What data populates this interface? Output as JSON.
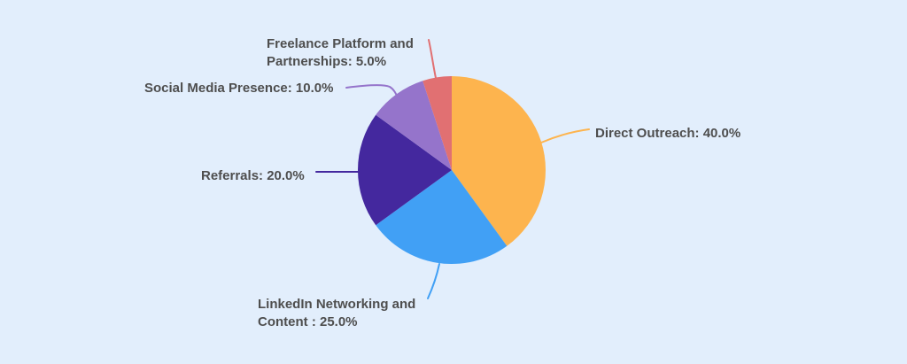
{
  "canvas": {
    "background_color": "#E2EEFC",
    "label_text_color": "#4E4E4E"
  },
  "chart_data": {
    "type": "pie",
    "title": "",
    "direction": "clockwise",
    "start_angle": "top",
    "legend": "none",
    "total_percent": 100.0,
    "slices": [
      {
        "name": "Direct Outreach",
        "value": 40.0,
        "color": "#FDB44E"
      },
      {
        "name": "LinkedIn Networking and Content",
        "value": 25.0,
        "color": "#41A0F5"
      },
      {
        "name": "Referrals",
        "value": 20.0,
        "color": "#44289E"
      },
      {
        "name": "Social Media Presence",
        "value": 10.0,
        "color": "#9574CB"
      },
      {
        "name": "Freelance Platform and Partnerships",
        "value": 5.0,
        "color": "#E17072"
      }
    ]
  },
  "labels": {
    "direct_outreach": "Direct Outreach: 40.0%",
    "linkedin_line1": "LinkedIn Networking and",
    "linkedin_line2": "Content : 25.0%",
    "referrals": "Referrals: 20.0%",
    "social_media": "Social Media Presence: 10.0%",
    "freelance_line1": "Freelance Platform and",
    "freelance_line2": "Partnerships: 5.0%"
  }
}
